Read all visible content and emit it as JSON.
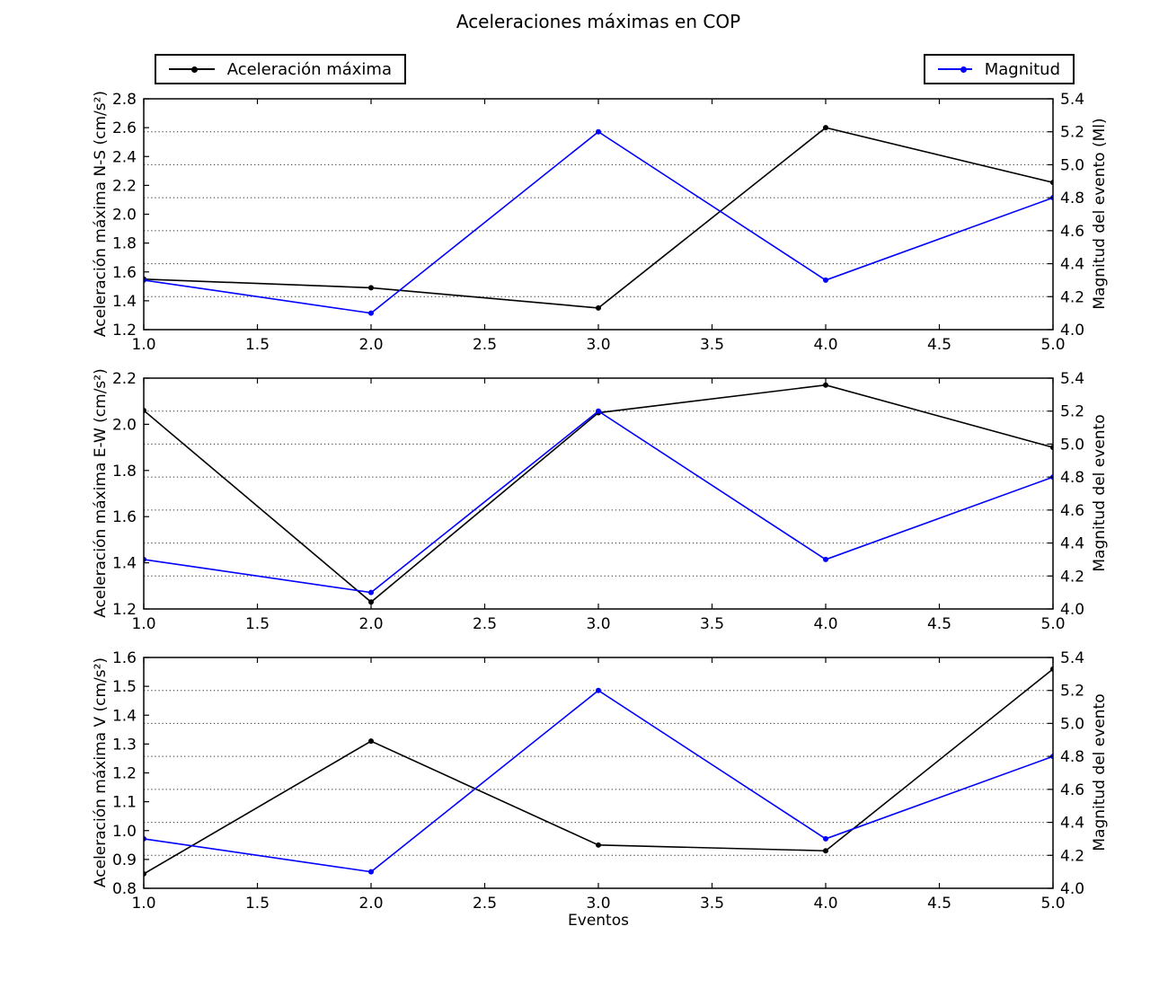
{
  "title": "Aceleraciones máximas en COP",
  "xlabel": "Eventos",
  "legend": {
    "accel_label": "Aceleración máxima",
    "mag_label": "Magnitud"
  },
  "colors": {
    "accel": "#000000",
    "mag": "#0000ff",
    "grid": "#333333"
  },
  "chart_data": [
    {
      "type": "line",
      "title": "",
      "x": [
        1.0,
        2.0,
        3.0,
        4.0,
        5.0
      ],
      "xlim": [
        1.0,
        5.0
      ],
      "xtick_step": 0.5,
      "ylabel_left": "Aceleración máxima N-S (cm/s²)",
      "ylabel_right": "Magnitud del evento (Ml)",
      "ylim_left": [
        1.2,
        2.8
      ],
      "ytick_step_left": 0.2,
      "ylim_right": [
        4.0,
        5.4
      ],
      "ytick_step_right": 0.2,
      "grid": "horizontal dotted lines at right-axis ticks",
      "legend_position": "outside top (figure level)",
      "series": [
        {
          "name": "Aceleración máxima",
          "axis": "left",
          "color": "#000000",
          "values": [
            1.55,
            1.49,
            1.35,
            2.6,
            2.22
          ]
        },
        {
          "name": "Magnitud",
          "axis": "right",
          "color": "#0000ff",
          "values": [
            4.3,
            4.1,
            5.2,
            4.3,
            4.8
          ]
        }
      ]
    },
    {
      "type": "line",
      "title": "",
      "x": [
        1.0,
        2.0,
        3.0,
        4.0,
        5.0
      ],
      "xlim": [
        1.0,
        5.0
      ],
      "xtick_step": 0.5,
      "ylabel_left": "Aceleración máxima E-W (cm/s²)",
      "ylabel_right": "Magnitud del evento",
      "ylim_left": [
        1.2,
        2.2
      ],
      "ytick_step_left": 0.2,
      "ylim_right": [
        4.0,
        5.4
      ],
      "ytick_step_right": 0.2,
      "grid": "horizontal dotted lines at right-axis ticks",
      "legend_position": "outside top (figure level)",
      "series": [
        {
          "name": "Aceleración máxima",
          "axis": "left",
          "color": "#000000",
          "values": [
            2.06,
            1.23,
            2.05,
            2.17,
            1.9
          ]
        },
        {
          "name": "Magnitud",
          "axis": "right",
          "color": "#0000ff",
          "values": [
            4.3,
            4.1,
            5.2,
            4.3,
            4.8
          ]
        }
      ]
    },
    {
      "type": "line",
      "title": "",
      "x": [
        1.0,
        2.0,
        3.0,
        4.0,
        5.0
      ],
      "xlim": [
        1.0,
        5.0
      ],
      "xtick_step": 0.5,
      "ylabel_left": "Aceleración máxima V (cm/s²)",
      "ylabel_right": "Magnitud del evento",
      "ylim_left": [
        0.8,
        1.6
      ],
      "ytick_step_left": 0.1,
      "ylim_right": [
        4.0,
        5.4
      ],
      "ytick_step_right": 0.2,
      "grid": "horizontal dotted lines at right-axis ticks",
      "legend_position": "outside top (figure level)",
      "series": [
        {
          "name": "Aceleración máxima",
          "axis": "left",
          "color": "#000000",
          "values": [
            0.85,
            1.31,
            0.95,
            0.93,
            1.56
          ]
        },
        {
          "name": "Magnitud",
          "axis": "right",
          "color": "#0000ff",
          "values": [
            4.3,
            4.1,
            5.2,
            4.3,
            4.8
          ]
        }
      ]
    }
  ]
}
